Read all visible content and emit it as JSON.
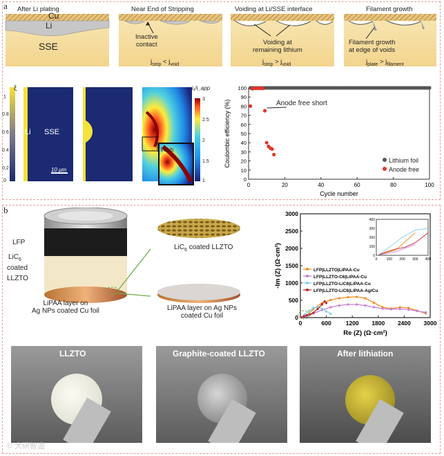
{
  "panel_a": {
    "label": "a",
    "schematics": [
      {
        "title": "After Li plating",
        "layers": [
          "Cu",
          "Li",
          "SSE"
        ]
      },
      {
        "title": "Near End of Stripping",
        "note": "Inactive\ncontact",
        "condition": "j",
        "sub1": "strip",
        "op": " < j",
        "sub2": "void"
      },
      {
        "title": "Voiding at Li/SSE interface",
        "note": "Voiding at\nremaining lithium",
        "sub1": "strip",
        "op": " > j",
        "sub2": "void"
      },
      {
        "title": "Filament growth",
        "note": "Filament growth\nat edge of voids",
        "sub1": "plate",
        "op": " > j",
        "sub2": "filament"
      }
    ],
    "sim": {
      "xi_label": "ξ",
      "xi_ticks": [
        "1",
        "0.8",
        "0.6",
        "0.4",
        "0.2",
        "0"
      ],
      "li_label": "Li",
      "sse_label": "SSE",
      "scale": "10 μm",
      "current_label": "i₁/i_app",
      "current_ticks": [
        "3",
        "2.5",
        "2",
        "1.5",
        "1"
      ],
      "voids_label": "Voids"
    },
    "ce_chart": {
      "annotation": "Anode free short",
      "legend": [
        "Lithium foil",
        "Anode free"
      ]
    }
  },
  "panel_b": {
    "label": "b",
    "stack_labels": {
      "lfp": "LFP",
      "coated": [
        "LiC",
        "6",
        "coated",
        "LLZTO"
      ],
      "bottom": "LiPAA layer on\nAg NPs coated Cu foil"
    },
    "disc_labels": {
      "top_pre": "LiC",
      "top_sub": "6",
      "top_post": " coated LLZTO",
      "bottom": "LiPAA layer on Ag NPs\ncoated Cu foil"
    },
    "photos": [
      "LLZTO",
      "Graphite-coated LLZTO",
      "After lithiation"
    ],
    "watermark": "© 大研智造"
  },
  "colors": {
    "border": "#e79a9a",
    "lithium": "#555555",
    "anode_free": "#e2362c"
  },
  "chart_data": [
    {
      "type": "scatter",
      "xlabel": "Cycle number",
      "ylabel": "Coulombic efficiency (%)",
      "xlim": [
        0,
        100
      ],
      "ylim": [
        0,
        100
      ],
      "xticks": [
        0,
        20,
        40,
        60,
        80,
        100
      ],
      "yticks": [
        0,
        10,
        20,
        30,
        40,
        50,
        60,
        70,
        80,
        90,
        100
      ],
      "legend_position": "bottom-right",
      "series": [
        {
          "name": "Lithium foil",
          "color": "#555555",
          "x": [
            1,
            2,
            3,
            4,
            5,
            6,
            7,
            8,
            9,
            10,
            11,
            12,
            13,
            14,
            15,
            16,
            17,
            18,
            19,
            20,
            21,
            22,
            23,
            24,
            25,
            26,
            27,
            28,
            29,
            30,
            31,
            32,
            33,
            34,
            35,
            36,
            37,
            38,
            39,
            40,
            41,
            42,
            43,
            44,
            45,
            46,
            47,
            48,
            49,
            50,
            51,
            52,
            53,
            54,
            55,
            56,
            57,
            58,
            59,
            60,
            61,
            62,
            63,
            64,
            65,
            66,
            67,
            68,
            69,
            70,
            71,
            72,
            73,
            74,
            75,
            76,
            77,
            78,
            79,
            80,
            81,
            82,
            83,
            84,
            85,
            86,
            87,
            88,
            89,
            90,
            91,
            92,
            93,
            94,
            95,
            96,
            97,
            98,
            99,
            100
          ],
          "y": [
            100,
            100,
            100,
            100,
            100,
            100,
            100,
            100,
            100,
            100,
            100,
            100,
            100,
            100,
            100,
            100,
            100,
            100,
            100,
            100,
            100,
            100,
            100,
            100,
            100,
            100,
            100,
            100,
            100,
            100,
            100,
            100,
            100,
            100,
            100,
            100,
            100,
            100,
            100,
            100,
            100,
            100,
            100,
            100,
            100,
            100,
            100,
            100,
            100,
            100,
            100,
            100,
            100,
            100,
            100,
            100,
            100,
            100,
            100,
            100,
            100,
            100,
            100,
            100,
            100,
            100,
            100,
            100,
            100,
            100,
            100,
            100,
            100,
            100,
            100,
            100,
            100,
            100,
            100,
            100,
            100,
            100,
            100,
            100,
            100,
            100,
            100,
            100,
            100,
            100,
            100,
            100,
            100,
            100,
            100,
            100,
            100,
            100,
            100,
            100
          ]
        },
        {
          "name": "Anode free",
          "color": "#e2362c",
          "x": [
            1,
            2,
            3,
            4,
            5,
            6,
            7,
            8,
            9,
            10,
            11,
            12,
            13,
            14
          ],
          "y": [
            80,
            99,
            99.5,
            99.5,
            99.5,
            99.5,
            99.5,
            99.5,
            75,
            40,
            36,
            34,
            33,
            27
          ]
        }
      ]
    },
    {
      "type": "line",
      "xlabel": "Re (Z) (Ω·cm²)",
      "ylabel": "-Im (Z) (Ω·cm²)",
      "xlim": [
        0,
        3000
      ],
      "ylim": [
        0,
        3000
      ],
      "xticks": [
        0,
        600,
        1200,
        1800,
        2400,
        3000
      ],
      "yticks": [
        0,
        500,
        1000,
        1500,
        2000,
        2500,
        3000
      ],
      "legend_position": "middle-left",
      "series": [
        {
          "name": "LFP|LLZTO|LiPAA-Cu",
          "color": "#f28e1c",
          "x": [
            20,
            150,
            300,
            500,
            700,
            900,
            1100,
            1300,
            1500,
            1700,
            1900,
            2100,
            2300,
            2500,
            2700,
            2900
          ],
          "y": [
            5,
            60,
            250,
            420,
            510,
            560,
            590,
            600,
            560,
            430,
            300,
            260,
            300,
            280,
            200,
            120
          ]
        },
        {
          "name": "LFP|LLZTO-C6|LiPAA-Cu",
          "color": "#c77fd6",
          "x": [
            20,
            150,
            300,
            500,
            700,
            900,
            1100,
            1300,
            1500,
            1700,
            1900,
            2100,
            2300,
            2500,
            2700,
            2900
          ],
          "y": [
            5,
            40,
            120,
            220,
            300,
            350,
            380,
            380,
            350,
            300,
            260,
            240,
            250,
            230,
            190,
            150
          ]
        },
        {
          "name": "LFP|LLZTO-LiC6|LiPAA-Cu",
          "color": "#7fd1e8",
          "x": [
            20,
            100,
            200,
            300,
            400,
            500,
            600,
            700
          ],
          "y": [
            5,
            90,
            200,
            280,
            300,
            260,
            180,
            110
          ]
        },
        {
          "name": "LFP|LLZTO-LiC6|LiPAA-Ag/Cu",
          "color": "#c0272d",
          "x": [
            20,
            80,
            150,
            220,
            300,
            400,
            500,
            560,
            600
          ],
          "y": [
            5,
            40,
            70,
            90,
            140,
            250,
            380,
            470,
            420
          ]
        }
      ],
      "inset": {
        "xlim": [
          0,
          400
        ],
        "ylim": [
          0,
          400
        ],
        "xticks": [
          0,
          100,
          200,
          300,
          400
        ],
        "yticks": [
          0,
          100,
          200,
          300,
          400
        ]
      }
    }
  ]
}
